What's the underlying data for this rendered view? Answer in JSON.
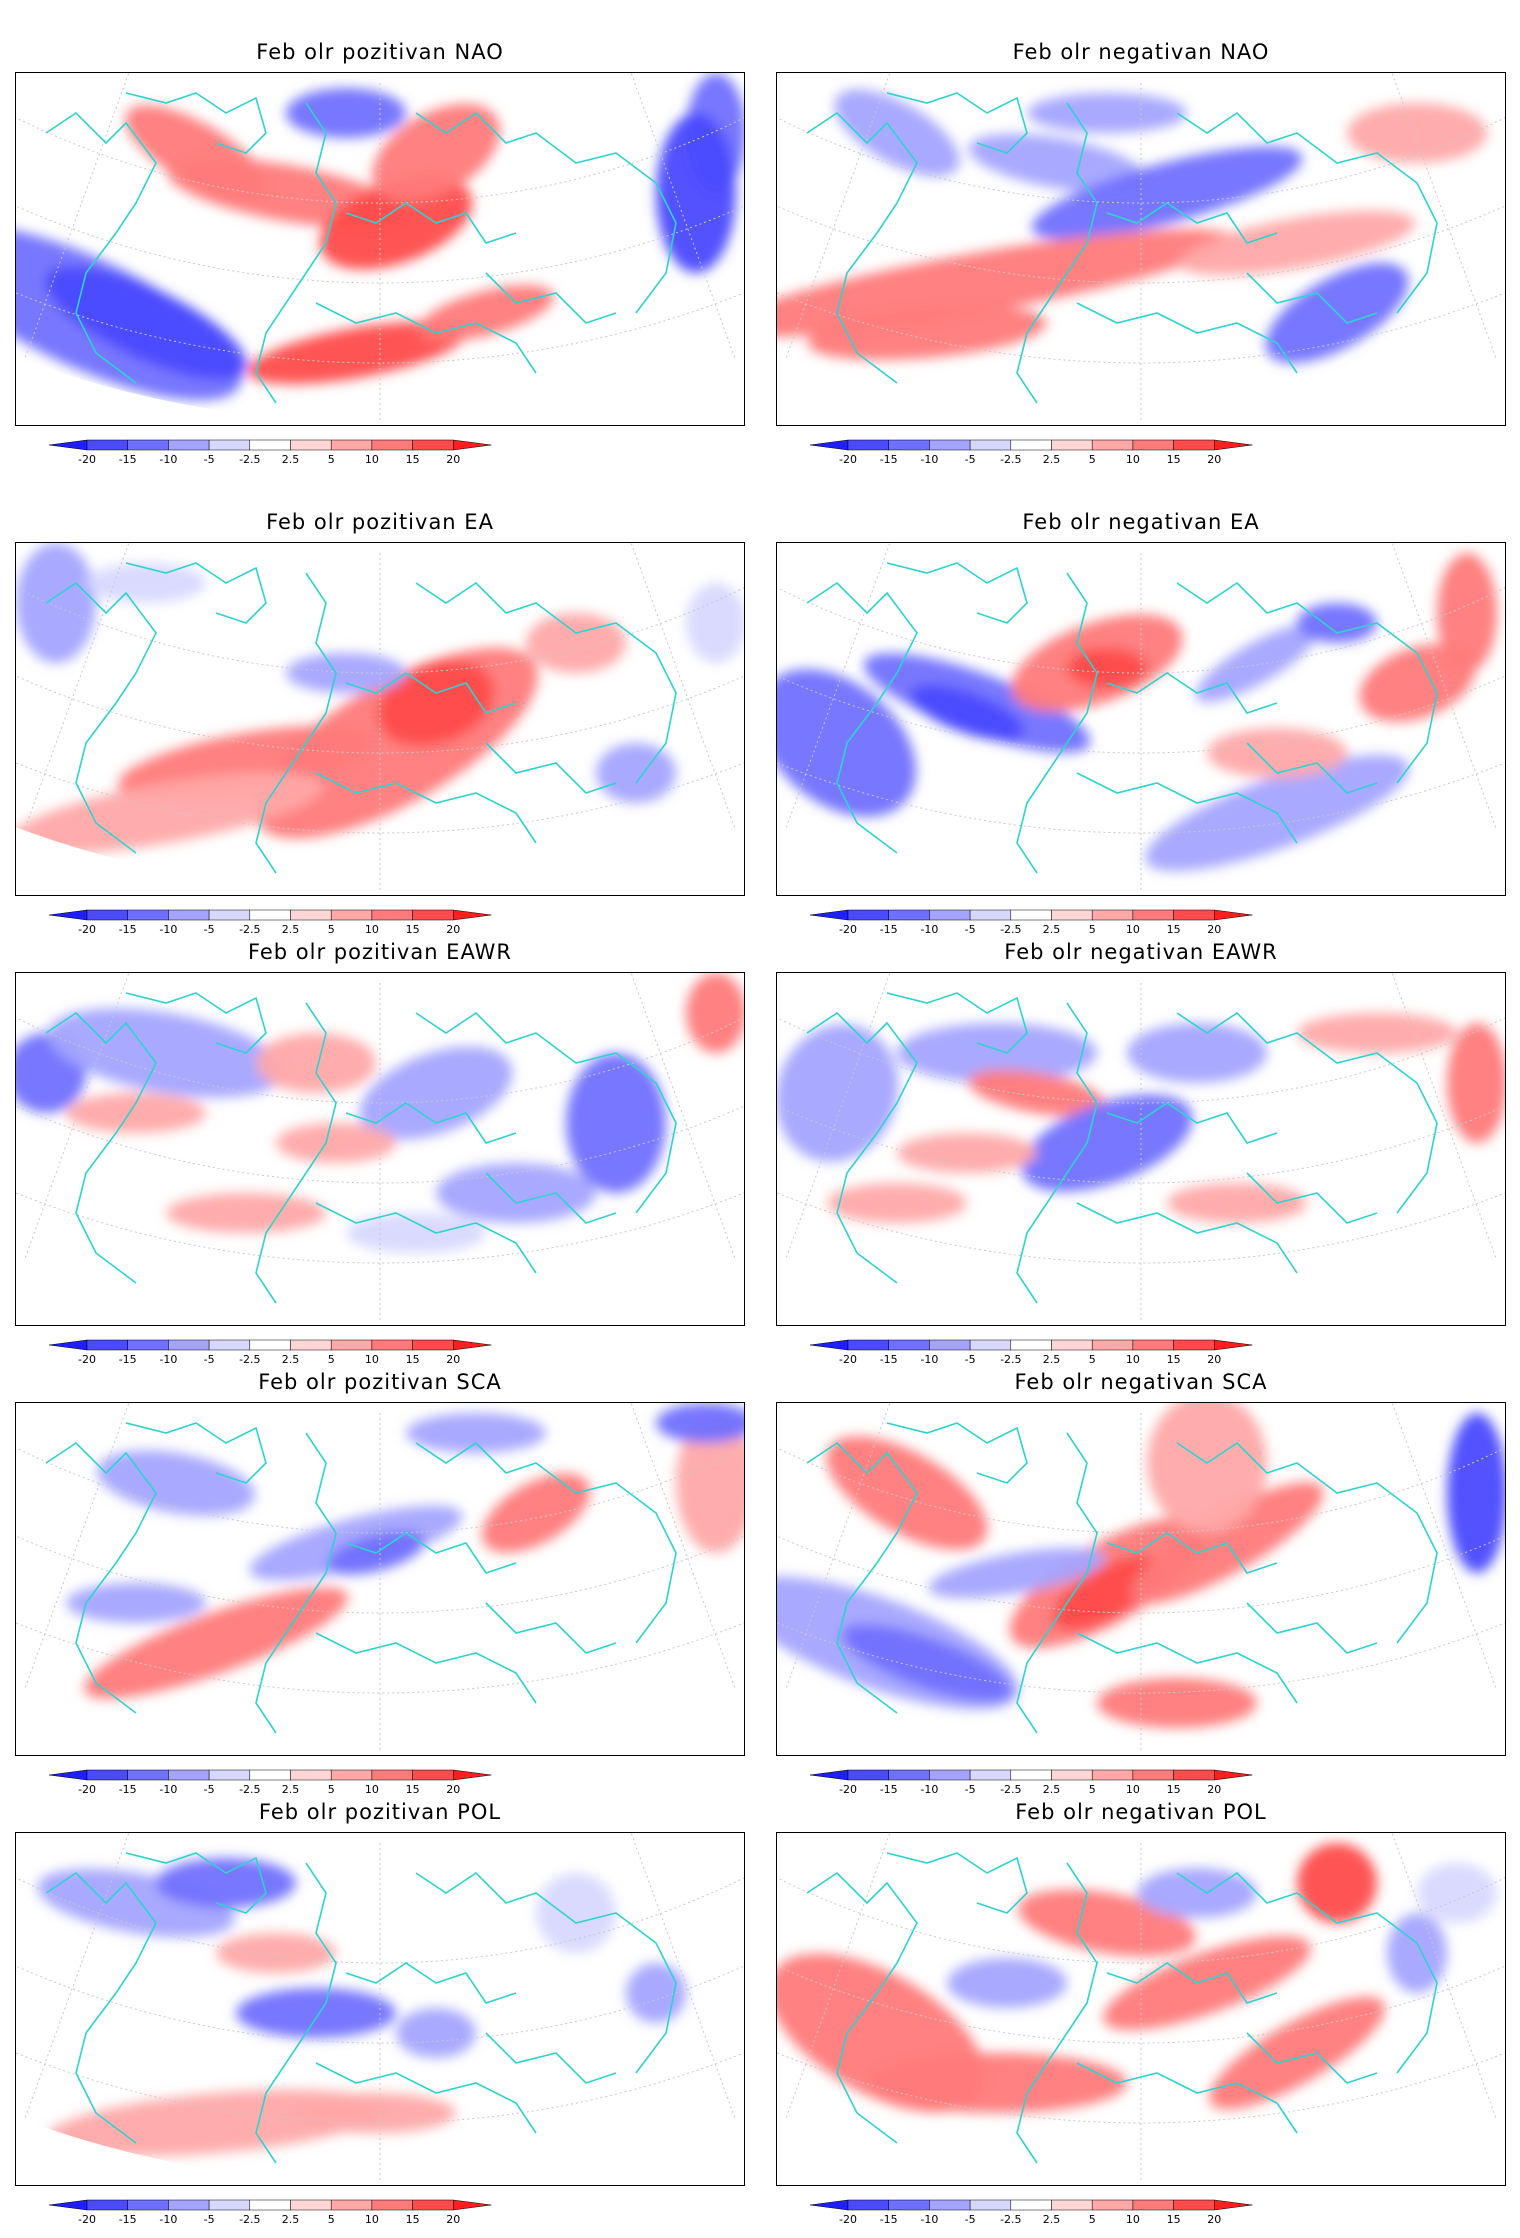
{
  "colorbar": {
    "ticks": [
      "-20",
      "-15",
      "-10",
      "-5",
      "-2.5",
      "2.5",
      "5",
      "10",
      "15",
      "20"
    ],
    "colors": [
      "#1e1eff",
      "#4a4aff",
      "#7070ff",
      "#a4a4ff",
      "#d8d8ff",
      "#ffffff",
      "#ffd6d6",
      "#ffa8a8",
      "#ff7a7a",
      "#ff4b4b",
      "#ff1e1e"
    ]
  },
  "colors": {
    "coastline": "#2dd3cf",
    "gridline": "#c8c8c8",
    "frame": "#000000"
  },
  "panels": [
    {
      "title": "Feb olr pozitivan NAO"
    },
    {
      "title": "Feb olr negativan NAO"
    },
    {
      "title": "Feb olr pozitivan EA"
    },
    {
      "title": "Feb olr negativan EA"
    },
    {
      "title": "Feb olr pozitivan EAWR"
    },
    {
      "title": "Feb olr negativan EAWR"
    },
    {
      "title": "Feb olr pozitivan SCA"
    },
    {
      "title": "Feb olr negativan SCA"
    },
    {
      "title": "Feb olr pozitivan POL"
    },
    {
      "title": "Feb olr negativan POL"
    }
  ]
}
